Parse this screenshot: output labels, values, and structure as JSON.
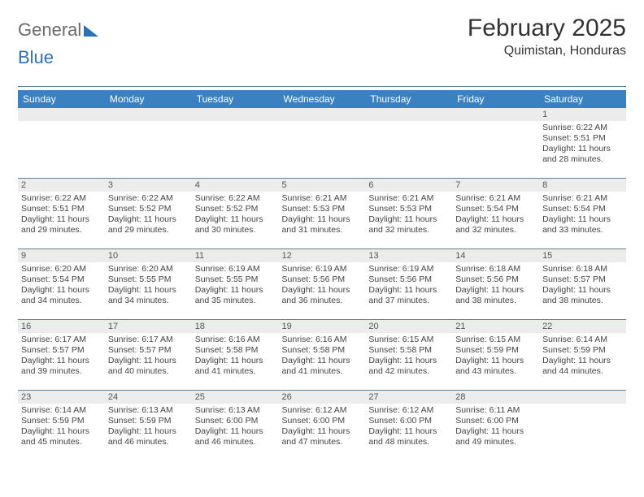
{
  "brand": {
    "word1": "General",
    "word2": "Blue"
  },
  "title": {
    "month": "February 2025",
    "location": "Quimistan, Honduras"
  },
  "style": {
    "header_bg": "#3b80c0",
    "header_text": "#ffffff",
    "stripe_bg": "#ececec",
    "rule_color": "#5f7f9a",
    "page_bg": "#ffffff",
    "text_color": "#333333",
    "daynum_fontsize": 11,
    "info_fontsize": 10.5
  },
  "weekdays": [
    "Sunday",
    "Monday",
    "Tuesday",
    "Wednesday",
    "Thursday",
    "Friday",
    "Saturday"
  ],
  "weeks": [
    [
      null,
      null,
      null,
      null,
      null,
      null,
      {
        "n": "1",
        "sr": "Sunrise: 6:22 AM",
        "ss": "Sunset: 5:51 PM",
        "d1": "Daylight: 11 hours",
        "d2": "and 28 minutes."
      }
    ],
    [
      {
        "n": "2",
        "sr": "Sunrise: 6:22 AM",
        "ss": "Sunset: 5:51 PM",
        "d1": "Daylight: 11 hours",
        "d2": "and 29 minutes."
      },
      {
        "n": "3",
        "sr": "Sunrise: 6:22 AM",
        "ss": "Sunset: 5:52 PM",
        "d1": "Daylight: 11 hours",
        "d2": "and 29 minutes."
      },
      {
        "n": "4",
        "sr": "Sunrise: 6:22 AM",
        "ss": "Sunset: 5:52 PM",
        "d1": "Daylight: 11 hours",
        "d2": "and 30 minutes."
      },
      {
        "n": "5",
        "sr": "Sunrise: 6:21 AM",
        "ss": "Sunset: 5:53 PM",
        "d1": "Daylight: 11 hours",
        "d2": "and 31 minutes."
      },
      {
        "n": "6",
        "sr": "Sunrise: 6:21 AM",
        "ss": "Sunset: 5:53 PM",
        "d1": "Daylight: 11 hours",
        "d2": "and 32 minutes."
      },
      {
        "n": "7",
        "sr": "Sunrise: 6:21 AM",
        "ss": "Sunset: 5:54 PM",
        "d1": "Daylight: 11 hours",
        "d2": "and 32 minutes."
      },
      {
        "n": "8",
        "sr": "Sunrise: 6:21 AM",
        "ss": "Sunset: 5:54 PM",
        "d1": "Daylight: 11 hours",
        "d2": "and 33 minutes."
      }
    ],
    [
      {
        "n": "9",
        "sr": "Sunrise: 6:20 AM",
        "ss": "Sunset: 5:54 PM",
        "d1": "Daylight: 11 hours",
        "d2": "and 34 minutes."
      },
      {
        "n": "10",
        "sr": "Sunrise: 6:20 AM",
        "ss": "Sunset: 5:55 PM",
        "d1": "Daylight: 11 hours",
        "d2": "and 34 minutes."
      },
      {
        "n": "11",
        "sr": "Sunrise: 6:19 AM",
        "ss": "Sunset: 5:55 PM",
        "d1": "Daylight: 11 hours",
        "d2": "and 35 minutes."
      },
      {
        "n": "12",
        "sr": "Sunrise: 6:19 AM",
        "ss": "Sunset: 5:56 PM",
        "d1": "Daylight: 11 hours",
        "d2": "and 36 minutes."
      },
      {
        "n": "13",
        "sr": "Sunrise: 6:19 AM",
        "ss": "Sunset: 5:56 PM",
        "d1": "Daylight: 11 hours",
        "d2": "and 37 minutes."
      },
      {
        "n": "14",
        "sr": "Sunrise: 6:18 AM",
        "ss": "Sunset: 5:56 PM",
        "d1": "Daylight: 11 hours",
        "d2": "and 38 minutes."
      },
      {
        "n": "15",
        "sr": "Sunrise: 6:18 AM",
        "ss": "Sunset: 5:57 PM",
        "d1": "Daylight: 11 hours",
        "d2": "and 38 minutes."
      }
    ],
    [
      {
        "n": "16",
        "sr": "Sunrise: 6:17 AM",
        "ss": "Sunset: 5:57 PM",
        "d1": "Daylight: 11 hours",
        "d2": "and 39 minutes."
      },
      {
        "n": "17",
        "sr": "Sunrise: 6:17 AM",
        "ss": "Sunset: 5:57 PM",
        "d1": "Daylight: 11 hours",
        "d2": "and 40 minutes."
      },
      {
        "n": "18",
        "sr": "Sunrise: 6:16 AM",
        "ss": "Sunset: 5:58 PM",
        "d1": "Daylight: 11 hours",
        "d2": "and 41 minutes."
      },
      {
        "n": "19",
        "sr": "Sunrise: 6:16 AM",
        "ss": "Sunset: 5:58 PM",
        "d1": "Daylight: 11 hours",
        "d2": "and 41 minutes."
      },
      {
        "n": "20",
        "sr": "Sunrise: 6:15 AM",
        "ss": "Sunset: 5:58 PM",
        "d1": "Daylight: 11 hours",
        "d2": "and 42 minutes."
      },
      {
        "n": "21",
        "sr": "Sunrise: 6:15 AM",
        "ss": "Sunset: 5:59 PM",
        "d1": "Daylight: 11 hours",
        "d2": "and 43 minutes."
      },
      {
        "n": "22",
        "sr": "Sunrise: 6:14 AM",
        "ss": "Sunset: 5:59 PM",
        "d1": "Daylight: 11 hours",
        "d2": "and 44 minutes."
      }
    ],
    [
      {
        "n": "23",
        "sr": "Sunrise: 6:14 AM",
        "ss": "Sunset: 5:59 PM",
        "d1": "Daylight: 11 hours",
        "d2": "and 45 minutes."
      },
      {
        "n": "24",
        "sr": "Sunrise: 6:13 AM",
        "ss": "Sunset: 5:59 PM",
        "d1": "Daylight: 11 hours",
        "d2": "and 46 minutes."
      },
      {
        "n": "25",
        "sr": "Sunrise: 6:13 AM",
        "ss": "Sunset: 6:00 PM",
        "d1": "Daylight: 11 hours",
        "d2": "and 46 minutes."
      },
      {
        "n": "26",
        "sr": "Sunrise: 6:12 AM",
        "ss": "Sunset: 6:00 PM",
        "d1": "Daylight: 11 hours",
        "d2": "and 47 minutes."
      },
      {
        "n": "27",
        "sr": "Sunrise: 6:12 AM",
        "ss": "Sunset: 6:00 PM",
        "d1": "Daylight: 11 hours",
        "d2": "and 48 minutes."
      },
      {
        "n": "28",
        "sr": "Sunrise: 6:11 AM",
        "ss": "Sunset: 6:00 PM",
        "d1": "Daylight: 11 hours",
        "d2": "and 49 minutes."
      },
      null
    ]
  ]
}
